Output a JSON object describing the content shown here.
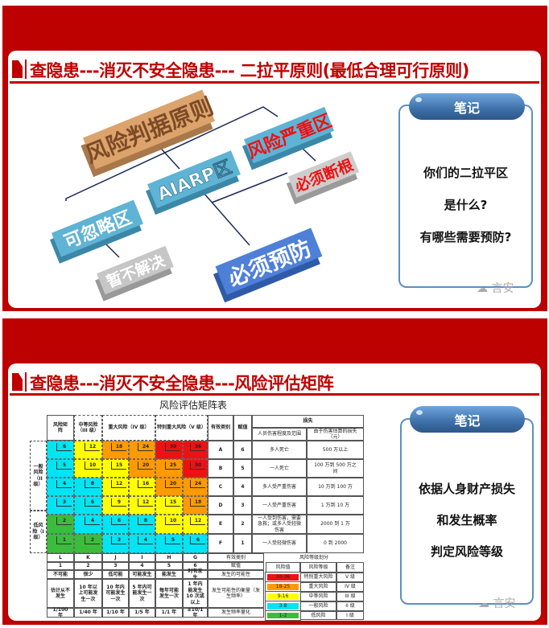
{
  "colors": {
    "brand_red": "#bd0000",
    "risk_red": "#ee1111",
    "risk_orange": "#ff9a00",
    "risk_yellow": "#ffff00",
    "risk_cyan": "#00e4f4",
    "risk_green": "#3cbc3c"
  },
  "slide1": {
    "title": "查隐患---消灭不安全隐患--- 二拉平原则(最低合理可行原则)",
    "diagram": {
      "root": "风险判据原则",
      "severe": "风险严重区",
      "alarp": "AIARP区",
      "must_eliminate": "必须断根",
      "negligible": "可忽略区",
      "defer": "暂不解决",
      "must_prevent": "必须预防"
    },
    "notes": {
      "header": "笔记",
      "lines": [
        "你们的二拉平区",
        "是什么?",
        "有哪些需要预防?"
      ],
      "watermark": "言安"
    }
  },
  "slide2": {
    "title": "查隐患---消灭不安全隐患---风险评估矩阵",
    "matrix": {
      "title": "风险评估矩阵表",
      "corner": "风险矩阵",
      "col_groups": [
        "中等风险（III 级）",
        "重大风险（IV 级）",
        "特别重大风险（V 级）"
      ],
      "row_groups": [
        "一般风险（II级）",
        "低风险（I级）"
      ],
      "grid": [
        [
          6,
          12,
          18,
          24,
          30,
          36
        ],
        [
          5,
          10,
          15,
          20,
          25,
          30
        ],
        [
          4,
          8,
          12,
          16,
          20,
          24
        ],
        [
          3,
          6,
          9,
          12,
          15,
          18
        ],
        [
          2,
          4,
          6,
          8,
          10,
          12
        ],
        [
          1,
          2,
          3,
          4,
          5,
          6
        ]
      ],
      "severity": {
        "headers": [
          "有效类别",
          "赋值",
          "损失",
          "人员伤害程度及范围",
          "由于伤害估算的损失（元）"
        ],
        "rows": [
          [
            "A",
            "6",
            "多人死亡",
            "500 万以上"
          ],
          [
            "B",
            "5",
            "一人死亡",
            "100 万到 500 万之间"
          ],
          [
            "C",
            "4",
            "多人受严重伤害",
            "10 万到 100 万"
          ],
          [
            "D",
            "3",
            "一人受严重伤害",
            "1 万到 10 万"
          ],
          [
            "E",
            "2",
            "一人受到伤害，需要急救；或多人受轻微伤害",
            "2000 到 1 万"
          ],
          [
            "F",
            "1",
            "一人受轻微伤害",
            "0 到 2000"
          ]
        ]
      },
      "likelihood": {
        "categories": [
          "L",
          "K",
          "J",
          "I",
          "H",
          "G"
        ],
        "values": [
          "1",
          "2",
          "3",
          "4",
          "5",
          "6"
        ],
        "possibility": [
          "不可能",
          "很少",
          "低可能",
          "可能发生",
          "能发生",
          "时有发生"
        ],
        "description": [
          "估计从不发生",
          "10 年以上可能发生一次",
          "10 年内可能发生一次",
          "5 年内可能发生一次",
          "每年可能发生一次",
          "1 年内能发生 10 次或以上"
        ],
        "frequency": [
          "1/100 年",
          "1/40 年",
          "1/10 年",
          "1/5 年",
          "1/1 年",
          "≥10/1 年"
        ],
        "labels": [
          "有效类别",
          "赋值",
          "发生的可能性",
          "发生可能性的衡量（发生频率）",
          "发生频率量化"
        ]
      },
      "legend": {
        "title": "风险等级划分",
        "headers": [
          "风险值",
          "风险等级",
          "备注"
        ],
        "rows": [
          [
            "30-36",
            "特别重大风险",
            "V 级"
          ],
          [
            "18-25",
            "重大风险",
            "IV 级"
          ],
          [
            "9-16",
            "中等风险",
            "III 级"
          ],
          [
            "3-8",
            "一般风险",
            "II 级"
          ],
          [
            "1-2",
            "低风险",
            "I 级"
          ]
        ]
      }
    },
    "notes": {
      "header": "笔记",
      "lines": [
        "依据人身财产损失",
        "和发生概率",
        "判定风险等级"
      ],
      "watermark": "言安"
    }
  }
}
